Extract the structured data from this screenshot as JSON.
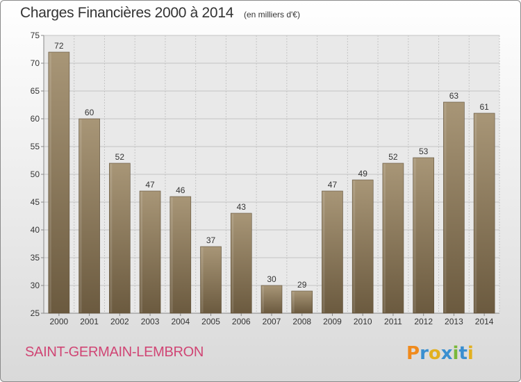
{
  "header": {
    "title": "Charges Financières 2000 à 2014",
    "subtitle": "(en milliers d'€)"
  },
  "footer": {
    "commune": "SAINT-GERMAIN-LEMBRON",
    "logo_text": "Proxiti"
  },
  "colors": {
    "bar_top": "#a89677",
    "bar_bottom": "#6b5a3f",
    "commune_text": "#d04574"
  },
  "chart_data": {
    "type": "bar",
    "title": "Charges Financières 2000 à 2014",
    "subtitle": "(en milliers d'€)",
    "categories": [
      "2000",
      "2001",
      "2002",
      "2003",
      "2004",
      "2005",
      "2006",
      "2007",
      "2008",
      "2009",
      "2010",
      "2011",
      "2012",
      "2013",
      "2014"
    ],
    "values": [
      72,
      60,
      52,
      47,
      46,
      37,
      43,
      30,
      29,
      47,
      49,
      52,
      53,
      63,
      61
    ],
    "ylim": [
      25,
      75
    ],
    "yticks": [
      25,
      30,
      35,
      40,
      45,
      50,
      55,
      60,
      65,
      70,
      75
    ],
    "grid": true,
    "xlabel": "",
    "ylabel": ""
  }
}
